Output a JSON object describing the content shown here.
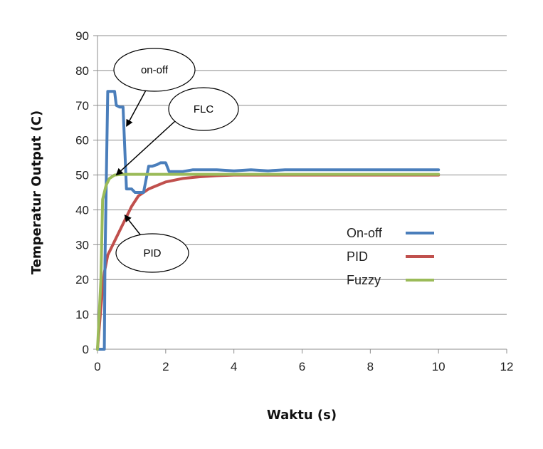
{
  "chart_data": {
    "type": "line",
    "title": "",
    "xlabel": "Waktu (s)",
    "ylabel": "Temperatur Output (C)",
    "xlim": [
      0,
      12
    ],
    "ylim": [
      0,
      90
    ],
    "x_ticks": [
      "0",
      "2",
      "4",
      "6",
      "8",
      "10",
      "12"
    ],
    "y_ticks": [
      "0",
      "10",
      "20",
      "30",
      "40",
      "50",
      "60",
      "70",
      "80",
      "90"
    ],
    "grid": "horizontal",
    "legend_position": "right",
    "series": [
      {
        "name": "On-off",
        "color": "#4a7ebb",
        "x": [
          0,
          0.2,
          0.22,
          0.3,
          0.35,
          0.5,
          0.55,
          0.65,
          0.75,
          0.85,
          0.9,
          1.0,
          1.1,
          1.2,
          1.35,
          1.5,
          1.6,
          1.75,
          1.85,
          2.0,
          2.1,
          2.3,
          2.5,
          2.8,
          3.0,
          3.5,
          4.0,
          4.5,
          5.0,
          5.5,
          6.0,
          8.0,
          10.0
        ],
        "y": [
          0,
          0,
          25,
          74,
          74,
          74,
          70,
          69.5,
          69.5,
          46,
          46,
          46,
          45,
          45,
          45,
          52.5,
          52.5,
          53,
          53.5,
          53.5,
          51,
          51,
          51,
          51.5,
          51.5,
          51.5,
          51.2,
          51.5,
          51.2,
          51.5,
          51.5,
          51.5,
          51.5
        ]
      },
      {
        "name": "PID",
        "color": "#c0504d",
        "x": [
          0,
          0.1,
          0.2,
          0.3,
          0.5,
          0.8,
          1.0,
          1.2,
          1.5,
          2.0,
          2.5,
          3.0,
          3.5,
          4.0,
          5.0,
          6.0,
          8.0,
          10.0
        ],
        "y": [
          0,
          12,
          22,
          27,
          31,
          37,
          41,
          44,
          46,
          48,
          49,
          49.5,
          49.8,
          50,
          50,
          50,
          50,
          50
        ]
      },
      {
        "name": "Fuzzy",
        "color": "#9bbb59",
        "x": [
          0,
          0.1,
          0.15,
          0.25,
          0.35,
          0.5,
          0.7,
          1.0,
          2.0,
          4.0,
          6.0,
          8.0,
          10.0
        ],
        "y": [
          0,
          20,
          43,
          47,
          49,
          50,
          50.2,
          50.2,
          50.2,
          50.2,
          50.2,
          50.2,
          50.2
        ]
      }
    ],
    "annotations": [
      {
        "text": "on-off",
        "target": [
          0.85,
          64
        ]
      },
      {
        "text": "FLC",
        "target": [
          0.55,
          50
        ]
      },
      {
        "text": "PID",
        "target": [
          0.8,
          38.5
        ]
      }
    ]
  }
}
